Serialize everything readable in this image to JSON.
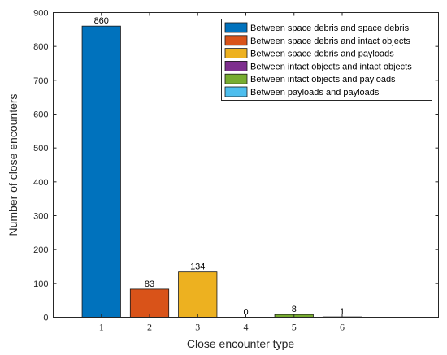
{
  "chart_data": {
    "type": "bar",
    "categories": [
      "1",
      "2",
      "3",
      "4",
      "5",
      "6"
    ],
    "values": [
      860,
      83,
      134,
      0,
      8,
      1
    ],
    "data_labels": [
      "860",
      "83",
      "134",
      "0",
      "8",
      "1"
    ],
    "colors": [
      "#0072BD",
      "#D95319",
      "#EDB120",
      "#7E2F8E",
      "#77AC30",
      "#4DBEEE"
    ],
    "legend": [
      "Between space debris and space debris",
      "Between space debris and intact objects",
      "Between space debris and payloads",
      "Between intact objects and intact objects",
      "Between intact objects and payloads",
      "Between payloads and payloads"
    ],
    "legend_position": "top-right",
    "xlabel": "Close encounter type",
    "ylabel": "Number of close encounters",
    "xlim": [
      0,
      8
    ],
    "ylim": [
      0,
      900
    ],
    "yticks": [
      "0",
      "100",
      "200",
      "300",
      "400",
      "500",
      "600",
      "700",
      "800",
      "900"
    ],
    "grid": false
  }
}
